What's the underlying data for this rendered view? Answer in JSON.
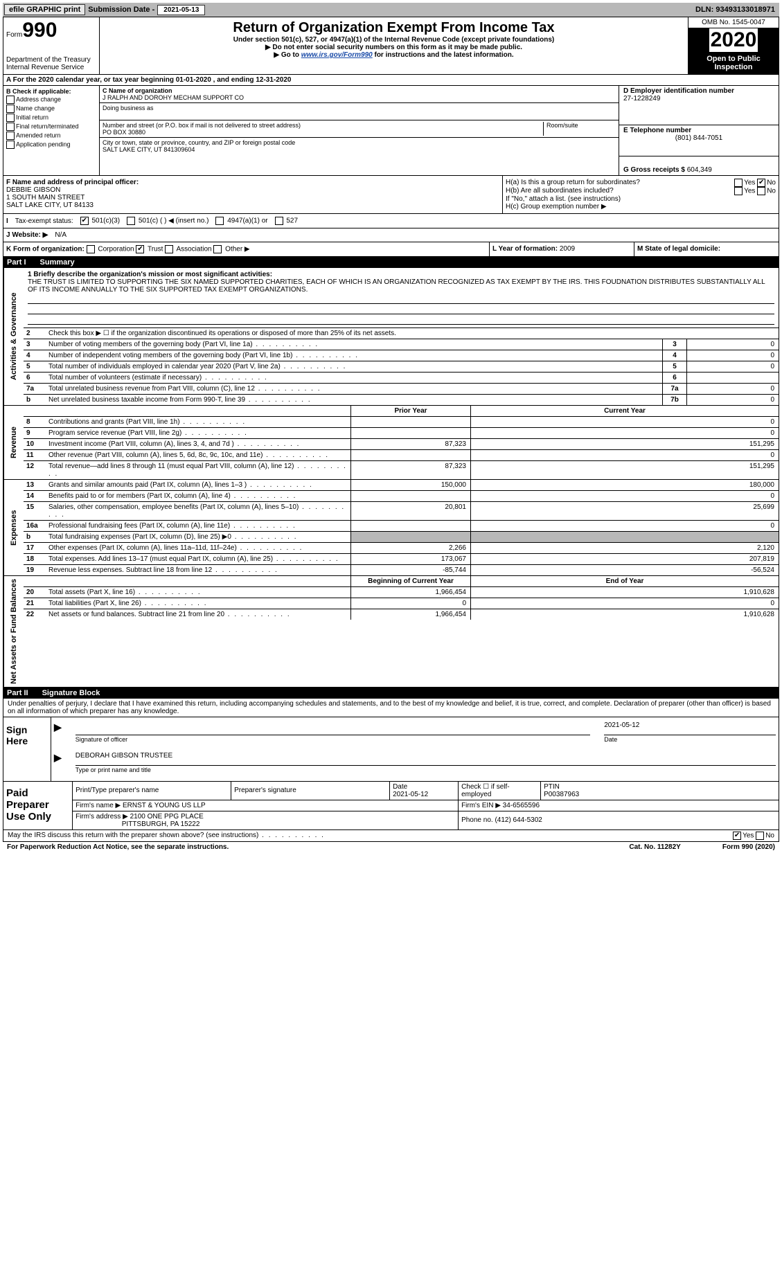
{
  "colors": {
    "gray": "#b8b8b8",
    "link": "#1a4ba8"
  },
  "topbar": {
    "efile": "efile GRAPHIC print",
    "sub_label": "Submission Date - ",
    "sub_date": "2021-05-13",
    "dln": "DLN: 93493133018971"
  },
  "header": {
    "form_prefix": "Form",
    "form_no": "990",
    "dept1": "Department of the Treasury",
    "dept2": "Internal Revenue Service",
    "title": "Return of Organization Exempt From Income Tax",
    "sub1": "Under section 501(c), 527, or 4947(a)(1) of the Internal Revenue Code (except private foundations)",
    "sub2": "▶ Do not enter social security numbers on this form as it may be made public.",
    "sub3_pre": "▶ Go to ",
    "sub3_link": "www.irs.gov/Form990",
    "sub3_post": " for instructions and the latest information.",
    "omb": "OMB No. 1545-0047",
    "year": "2020",
    "open": "Open to Public Inspection"
  },
  "lineA": "A For the 2020 calendar year, or tax year beginning 01-01-2020    , and ending 12-31-2020",
  "boxB": {
    "title": "B Check if applicable:",
    "items": [
      "Address change",
      "Name change",
      "Initial return",
      "Final return/terminated",
      "Amended return",
      "Application pending"
    ]
  },
  "boxC": {
    "name_label": "C Name of organization",
    "name": "J RALPH AND DOROHY MECHAM SUPPORT CO",
    "dba_label": "Doing business as",
    "street_label": "Number and street (or P.O. box if mail is not delivered to street address)",
    "street": "PO BOX 30880",
    "room_label": "Room/suite",
    "city_label": "City or town, state or province, country, and ZIP or foreign postal code",
    "city": "SALT LAKE CITY, UT  841309604"
  },
  "boxD": {
    "label": "D Employer identification number",
    "value": "27-1228249"
  },
  "boxE": {
    "label": "E Telephone number",
    "value": "(801) 844-7051"
  },
  "boxG": {
    "label": "G Gross receipts $ ",
    "value": "604,349"
  },
  "boxF": {
    "label": "F  Name and address of principal officer:",
    "name": "DEBBIE GIBSON",
    "addr1": "1 SOUTH MAIN STREET",
    "addr2": "SALT LAKE CITY, UT  84133"
  },
  "boxH": {
    "a": "H(a)  Is this a group return for subordinates?",
    "b": "H(b)  Are all subordinates included?",
    "b_note": "If \"No,\" attach a list. (see instructions)",
    "c": "H(c)  Group exemption number ▶",
    "yes": "Yes",
    "no": "No"
  },
  "taxExempt": {
    "label": "Tax-exempt status:",
    "o1": "501(c)(3)",
    "o2": "501(c) (  ) ◀ (insert no.)",
    "o3": "4947(a)(1) or",
    "o4": "527"
  },
  "website": {
    "label": "J   Website: ▶",
    "value": "  N/A"
  },
  "lineK": {
    "label": "K Form of organization:",
    "opts": [
      "Corporation",
      "Trust",
      "Association",
      "Other ▶"
    ]
  },
  "lineL": {
    "label": "L Year of formation: ",
    "value": "2009"
  },
  "lineM": {
    "label": "M State of legal domicile:",
    "value": ""
  },
  "part1": {
    "header_pn": "Part I",
    "header_title": "Summary",
    "vtab_ag": "Activities & Governance",
    "vtab_rev": "Revenue",
    "vtab_exp": "Expenses",
    "vtab_na": "Net Assets or Fund Balances",
    "l1_label": "1  Briefly describe the organization's mission or most significant activities:",
    "l1_text": "THE TRUST IS LIMITED TO SUPPORTING THE SIX NAMED SUPPORTED CHARITIES, EACH OF WHICH IS AN ORGANIZATION RECOGNIZED AS TAX EXEMPT BY THE IRS. THIS FOUDNATION DISTRIBUTES SUBSTANTIALLY ALL OF ITS INCOME ANNUALLY TO THE SIX SUPPORTED TAX EXEMPT ORGANIZATIONS.",
    "l2": "Check this box ▶ ☐  if the organization discontinued its operations or disposed of more than 25% of its net assets.",
    "rows_ag": [
      {
        "n": "3",
        "desc": "Number of voting members of the governing body (Part VI, line 1a)",
        "box": "3",
        "val": "0"
      },
      {
        "n": "4",
        "desc": "Number of independent voting members of the governing body (Part VI, line 1b)",
        "box": "4",
        "val": "0"
      },
      {
        "n": "5",
        "desc": "Total number of individuals employed in calendar year 2020 (Part V, line 2a)",
        "box": "5",
        "val": "0"
      },
      {
        "n": "6",
        "desc": "Total number of volunteers (estimate if necessary)",
        "box": "6",
        "val": ""
      },
      {
        "n": "7a",
        "desc": "Total unrelated business revenue from Part VIII, column (C), line 12",
        "box": "7a",
        "val": "0"
      },
      {
        "n": "b",
        "desc": "Net unrelated business taxable income from Form 990-T, line 39",
        "box": "7b",
        "val": "0"
      }
    ],
    "col_prior": "Prior Year",
    "col_current": "Current Year",
    "rows_rev": [
      {
        "n": "8",
        "desc": "Contributions and grants (Part VIII, line 1h)",
        "p": "",
        "c": "0"
      },
      {
        "n": "9",
        "desc": "Program service revenue (Part VIII, line 2g)",
        "p": "",
        "c": "0"
      },
      {
        "n": "10",
        "desc": "Investment income (Part VIII, column (A), lines 3, 4, and 7d )",
        "p": "87,323",
        "c": "151,295"
      },
      {
        "n": "11",
        "desc": "Other revenue (Part VIII, column (A), lines 5, 6d, 8c, 9c, 10c, and 11e)",
        "p": "",
        "c": "0"
      },
      {
        "n": "12",
        "desc": "Total revenue—add lines 8 through 11 (must equal Part VIII, column (A), line 12)",
        "p": "87,323",
        "c": "151,295"
      }
    ],
    "rows_exp": [
      {
        "n": "13",
        "desc": "Grants and similar amounts paid (Part IX, column (A), lines 1–3 )",
        "p": "150,000",
        "c": "180,000"
      },
      {
        "n": "14",
        "desc": "Benefits paid to or for members (Part IX, column (A), line 4)",
        "p": "",
        "c": "0"
      },
      {
        "n": "15",
        "desc": "Salaries, other compensation, employee benefits (Part IX, column (A), lines 5–10)",
        "p": "20,801",
        "c": "25,699"
      },
      {
        "n": "16a",
        "desc": "Professional fundraising fees (Part IX, column (A), line 11e)",
        "p": "",
        "c": "0"
      },
      {
        "n": "b",
        "desc": "Total fundraising expenses (Part IX, column (D), line 25) ▶0",
        "p": "SHADE",
        "c": "SHADE"
      },
      {
        "n": "17",
        "desc": "Other expenses (Part IX, column (A), lines 11a–11d, 11f–24e)",
        "p": "2,266",
        "c": "2,120"
      },
      {
        "n": "18",
        "desc": "Total expenses. Add lines 13–17 (must equal Part IX, column (A), line 25)",
        "p": "173,067",
        "c": "207,819"
      },
      {
        "n": "19",
        "desc": "Revenue less expenses. Subtract line 18 from line 12",
        "p": "-85,744",
        "c": "-56,524"
      }
    ],
    "col_begin": "Beginning of Current Year",
    "col_end": "End of Year",
    "rows_na": [
      {
        "n": "20",
        "desc": "Total assets (Part X, line 16)",
        "p": "1,966,454",
        "c": "1,910,628"
      },
      {
        "n": "21",
        "desc": "Total liabilities (Part X, line 26)",
        "p": "0",
        "c": "0"
      },
      {
        "n": "22",
        "desc": "Net assets or fund balances. Subtract line 21 from line 20",
        "p": "1,966,454",
        "c": "1,910,628"
      }
    ]
  },
  "part2": {
    "header_pn": "Part II",
    "header_title": "Signature Block",
    "perjury": "Under penalties of perjury, I declare that I have examined this return, including accompanying schedules and statements, and to the best of my knowledge and belief, it is true, correct, and complete. Declaration of preparer (other than officer) is based on all information of which preparer has any knowledge.",
    "sign_here": "Sign Here",
    "sig_date": "2021-05-12",
    "sig_officer": "Signature of officer",
    "sig_date_lbl": "Date",
    "sig_name": "DEBORAH GIBSON  TRUSTEE",
    "sig_name_lbl": "Type or print name and title",
    "paid_prep": "Paid Preparer Use Only",
    "pp_name_lbl": "Print/Type preparer's name",
    "pp_sig_lbl": "Preparer's signature",
    "pp_date_lbl": "Date",
    "pp_date": "2021-05-12",
    "pp_check_lbl": "Check ☐ if self-employed",
    "pp_ptin_lbl": "PTIN",
    "pp_ptin": "P00387963",
    "pp_firm_name_lbl": "Firm's name     ▶",
    "pp_firm_name": "ERNST & YOUNG US LLP",
    "pp_firm_ein_lbl": "Firm's EIN ▶",
    "pp_firm_ein": "34-6565596",
    "pp_firm_addr_lbl": "Firm's address ▶",
    "pp_firm_addr1": "2100 ONE PPG PLACE",
    "pp_firm_addr2": "PITTSBURGH, PA  15222",
    "pp_phone_lbl": "Phone no. ",
    "pp_phone": "(412) 644-5302",
    "discuss": "May the IRS discuss this return with the preparer shown above? (see instructions)",
    "yes": "Yes",
    "no": "No"
  },
  "footer": {
    "pra": "For Paperwork Reduction Act Notice, see the separate instructions.",
    "cat": "Cat. No. 11282Y",
    "form": "Form 990 (2020)"
  }
}
